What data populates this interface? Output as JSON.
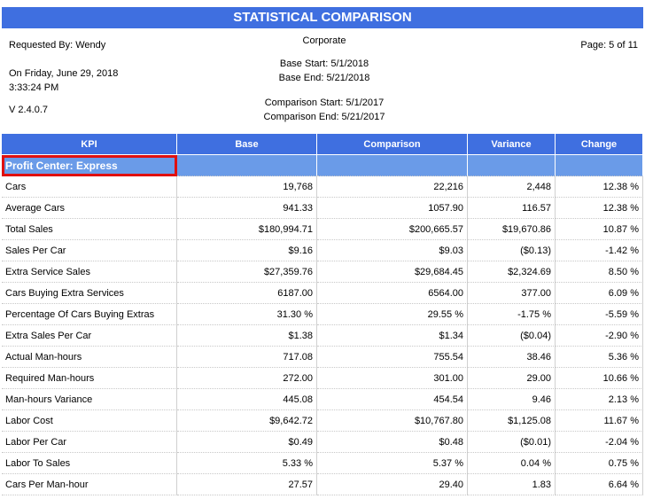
{
  "header": {
    "title": "STATISTICAL COMPARISON",
    "requested_by": "Requested By: Wendy",
    "date": "On Friday, June 29, 2018",
    "time": "3:33:24 PM",
    "version": "V 2.4.0.7",
    "scope": "Corporate",
    "base_start": "Base Start: 5/1/2018",
    "base_end": "Base End: 5/21/2018",
    "comparison_start": "Comparison Start: 5/1/2017",
    "comparison_end": "Comparison End: 5/21/2017",
    "page": "Page: 5 of 11"
  },
  "table": {
    "columns": [
      "KPI",
      "Base",
      "Comparison",
      "Variance",
      "Change"
    ],
    "section": "Profit Center: Express",
    "rows": [
      [
        "Cars",
        "19,768",
        "22,216",
        "2,448",
        "12.38 %"
      ],
      [
        "Average Cars",
        "941.33",
        "1057.90",
        "116.57",
        "12.38 %"
      ],
      [
        "Total Sales",
        "$180,994.71",
        "$200,665.57",
        "$19,670.86",
        "10.87 %"
      ],
      [
        "Sales Per Car",
        "$9.16",
        "$9.03",
        "($0.13)",
        "-1.42 %"
      ],
      [
        "Extra Service Sales",
        "$27,359.76",
        "$29,684.45",
        "$2,324.69",
        "8.50 %"
      ],
      [
        "Cars Buying Extra Services",
        "6187.00",
        "6564.00",
        "377.00",
        "6.09 %"
      ],
      [
        "Percentage Of Cars Buying Extras",
        "31.30 %",
        "29.55 %",
        "-1.75 %",
        "-5.59 %"
      ],
      [
        "Extra Sales Per Car",
        "$1.38",
        "$1.34",
        "($0.04)",
        "-2.90 %"
      ],
      [
        "Actual Man-hours",
        "717.08",
        "755.54",
        "38.46",
        "5.36 %"
      ],
      [
        "Required Man-hours",
        "272.00",
        "301.00",
        "29.00",
        "10.66 %"
      ],
      [
        "Man-hours Variance",
        "445.08",
        "454.54",
        "9.46",
        "2.13 %"
      ],
      [
        "Labor Cost",
        "$9,642.72",
        "$10,767.80",
        "$1,125.08",
        "11.67 %"
      ],
      [
        "Labor Per Car",
        "$0.49",
        "$0.48",
        "($0.01)",
        "-2.04 %"
      ],
      [
        "Labor To Sales",
        "5.33 %",
        "5.37 %",
        "0.04 %",
        "0.75 %"
      ],
      [
        "Cars Per Man-hour",
        "27.57",
        "29.40",
        "1.83",
        "6.64 %"
      ]
    ]
  }
}
